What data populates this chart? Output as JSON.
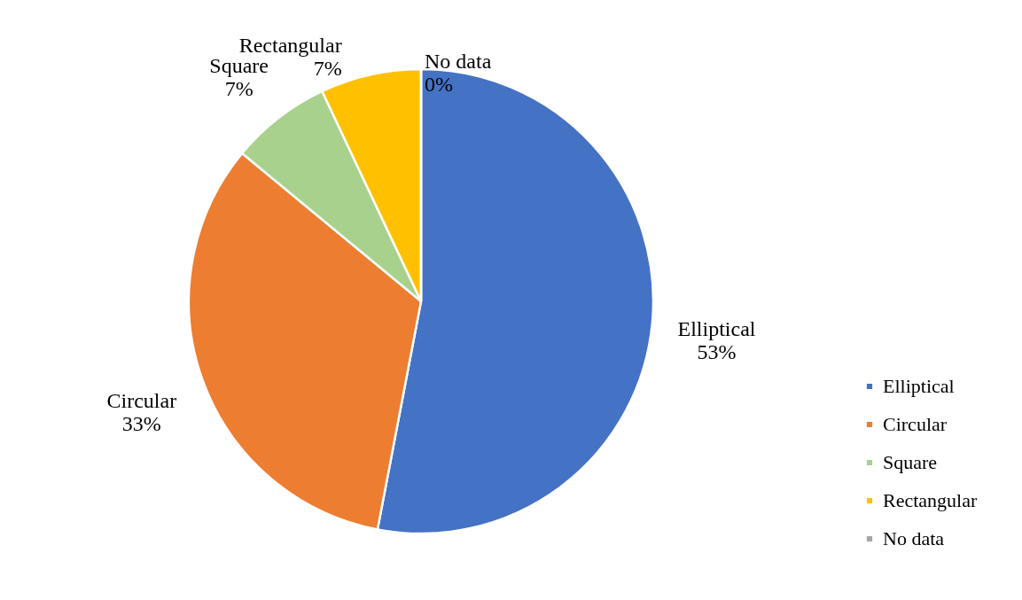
{
  "chart_data": {
    "type": "pie",
    "categories": [
      "Elliptical",
      "Circular",
      "Square",
      "Rectangular",
      "No data"
    ],
    "values": [
      53,
      33,
      7,
      7,
      0
    ],
    "value_labels": [
      "53%",
      "33%",
      "7%",
      "7%",
      "0%"
    ],
    "colors": [
      "#4472c4",
      "#ed7d31",
      "#a9d18e",
      "#ffc000",
      "#a5a5a5"
    ],
    "legend": "right"
  }
}
